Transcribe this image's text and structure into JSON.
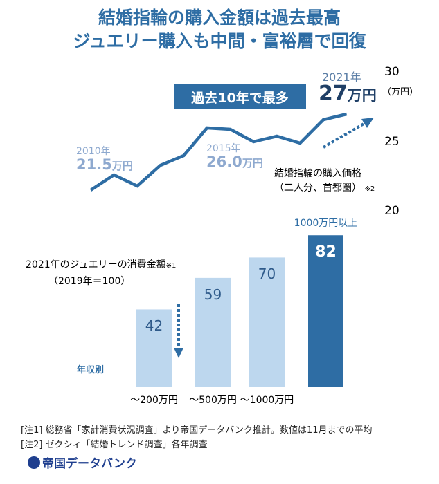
{
  "title_line1": "結婚指輪の購入金額は過去最高",
  "title_line2": "ジュエリー購入も中間・富裕層で回復",
  "chart_data": [
    {
      "type": "line",
      "series_label_line1": "結婚指輪の購入価格",
      "series_label_line2": "（二人分、首都圏）",
      "series_label_note": "※2",
      "x": [
        2010,
        2011,
        2012,
        2013,
        2014,
        2015,
        2016,
        2017,
        2018,
        2019,
        2020,
        2021
      ],
      "values": [
        21.5,
        22.6,
        21.8,
        23.3,
        24.0,
        26.0,
        25.9,
        25.0,
        25.4,
        24.9,
        26.6,
        27.0
      ],
      "y_ticks": [
        "30",
        "25",
        "20"
      ],
      "y_unit": "（万円）",
      "ylim": [
        20,
        30
      ],
      "color": "#2e6da4",
      "badge": "過去10年で最多",
      "annotations": [
        {
          "year": "2010年",
          "value": "21.5",
          "unit": "万円"
        },
        {
          "year": "2015年",
          "value": "26.0",
          "unit": "万円"
        },
        {
          "year": "2021年",
          "value": "27",
          "unit": "万円"
        }
      ]
    },
    {
      "type": "bar",
      "title_line1": "2021年のジュエリーの消費金額",
      "title_note": "※1",
      "title_line2": "（2019年＝100）",
      "xlabel": "年収別",
      "categories": [
        "～200万円",
        "～500万円",
        "～1000万円",
        "1000万円以上"
      ],
      "values": [
        42,
        59,
        70,
        82
      ],
      "colors": [
        "#bdd7ee",
        "#bdd7ee",
        "#bdd7ee",
        "#2e6da4"
      ]
    }
  ],
  "notes": [
    "[注1] 総務省「家計消費状況調査」より帝国データバンク推計。数値は11月までの平均",
    "[注2] ゼクシィ「結婚トレンド調査」各年調査"
  ],
  "logo": "帝国データバンク"
}
